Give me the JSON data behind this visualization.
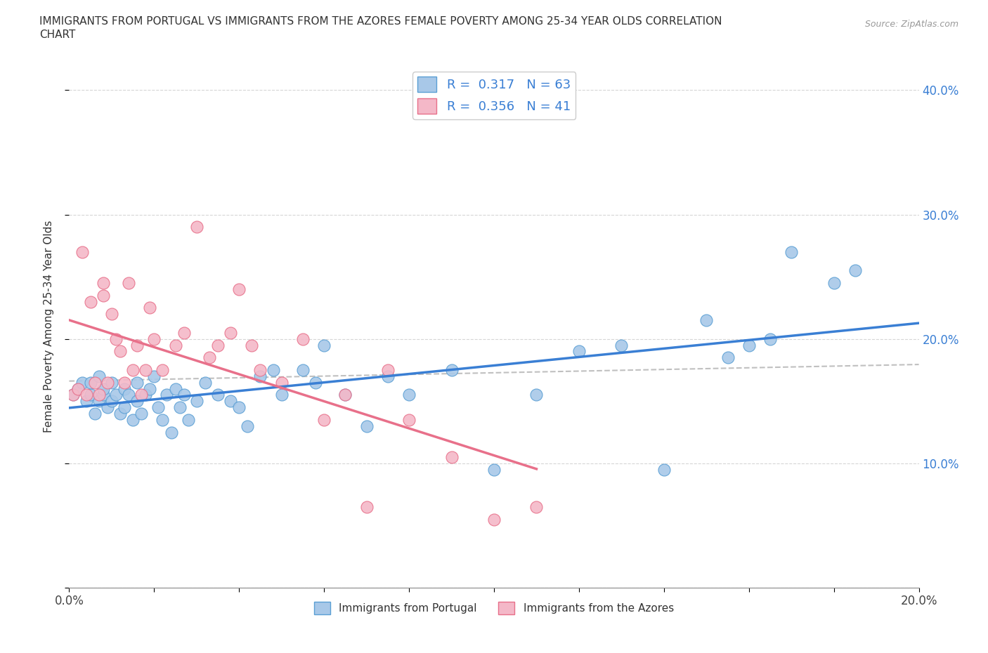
{
  "title_line1": "IMMIGRANTS FROM PORTUGAL VS IMMIGRANTS FROM THE AZORES FEMALE POVERTY AMONG 25-34 YEAR OLDS CORRELATION",
  "title_line2": "CHART",
  "source": "Source: ZipAtlas.com",
  "ylabel": "Female Poverty Among 25-34 Year Olds",
  "xlim": [
    0.0,
    0.2
  ],
  "ylim": [
    0.0,
    0.42
  ],
  "R_portugal": 0.317,
  "N_portugal": 63,
  "R_azores": 0.356,
  "N_azores": 41,
  "color_portugal": "#a8c8e8",
  "color_azores": "#f4b8c8",
  "edge_portugal": "#5a9fd4",
  "edge_azores": "#e8708a",
  "trendline_portugal_color": "#3a7fd4",
  "trendline_azores_color": "#e8708a",
  "trendline_dashed_color": "#c0c0c0",
  "portugal_x": [
    0.001,
    0.002,
    0.003,
    0.004,
    0.005,
    0.005,
    0.006,
    0.007,
    0.007,
    0.008,
    0.008,
    0.009,
    0.01,
    0.01,
    0.011,
    0.012,
    0.013,
    0.013,
    0.014,
    0.015,
    0.016,
    0.016,
    0.017,
    0.018,
    0.019,
    0.02,
    0.021,
    0.022,
    0.023,
    0.024,
    0.025,
    0.026,
    0.027,
    0.028,
    0.03,
    0.032,
    0.035,
    0.038,
    0.04,
    0.042,
    0.045,
    0.048,
    0.05,
    0.055,
    0.058,
    0.06,
    0.065,
    0.07,
    0.075,
    0.08,
    0.09,
    0.1,
    0.11,
    0.12,
    0.13,
    0.14,
    0.15,
    0.155,
    0.16,
    0.165,
    0.17,
    0.18,
    0.185
  ],
  "portugal_y": [
    0.155,
    0.16,
    0.165,
    0.15,
    0.155,
    0.165,
    0.14,
    0.15,
    0.17,
    0.155,
    0.16,
    0.145,
    0.165,
    0.15,
    0.155,
    0.14,
    0.16,
    0.145,
    0.155,
    0.135,
    0.15,
    0.165,
    0.14,
    0.155,
    0.16,
    0.17,
    0.145,
    0.135,
    0.155,
    0.125,
    0.16,
    0.145,
    0.155,
    0.135,
    0.15,
    0.165,
    0.155,
    0.15,
    0.145,
    0.13,
    0.17,
    0.175,
    0.155,
    0.175,
    0.165,
    0.195,
    0.155,
    0.13,
    0.17,
    0.155,
    0.175,
    0.095,
    0.155,
    0.19,
    0.195,
    0.095,
    0.215,
    0.185,
    0.195,
    0.2,
    0.27,
    0.245,
    0.255
  ],
  "azores_x": [
    0.001,
    0.002,
    0.003,
    0.004,
    0.005,
    0.006,
    0.007,
    0.008,
    0.008,
    0.009,
    0.01,
    0.011,
    0.012,
    0.013,
    0.014,
    0.015,
    0.016,
    0.017,
    0.018,
    0.019,
    0.02,
    0.022,
    0.025,
    0.027,
    0.03,
    0.033,
    0.035,
    0.038,
    0.04,
    0.043,
    0.045,
    0.05,
    0.055,
    0.06,
    0.065,
    0.07,
    0.075,
    0.08,
    0.09,
    0.1,
    0.11
  ],
  "azores_y": [
    0.155,
    0.16,
    0.27,
    0.155,
    0.23,
    0.165,
    0.155,
    0.235,
    0.245,
    0.165,
    0.22,
    0.2,
    0.19,
    0.165,
    0.245,
    0.175,
    0.195,
    0.155,
    0.175,
    0.225,
    0.2,
    0.175,
    0.195,
    0.205,
    0.29,
    0.185,
    0.195,
    0.205,
    0.24,
    0.195,
    0.175,
    0.165,
    0.2,
    0.135,
    0.155,
    0.065,
    0.175,
    0.135,
    0.105,
    0.055,
    0.065
  ]
}
